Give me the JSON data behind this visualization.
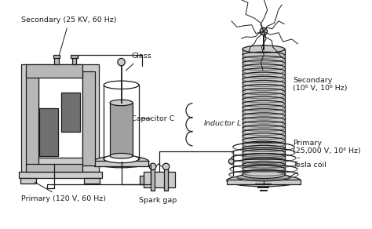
{
  "bg_color": "#ffffff",
  "line_color": "#1a1a1a",
  "gray_fill": "#a0a0a0",
  "light_gray": "#cccccc",
  "dark_gray": "#707070",
  "mid_gray": "#b8b8b8",
  "labels": {
    "secondary_transformer": "Secondary (25 KV, 60 Hz)",
    "primary_transformer": "Primary (120 V, 60 Hz)",
    "glass": "Glass",
    "capacitor": "Capacitor C",
    "spark_gap": "Spark gap",
    "inductor": "Inductor L",
    "secondary_coil": "Secondary\n(10⁶ V, 10⁶ Hz)",
    "primary_coil": "Primary\n(25,000 V, 10⁶ Hz)",
    "tesla_coil": "Tesla coil"
  },
  "figsize": [
    4.74,
    2.92
  ],
  "dpi": 100
}
